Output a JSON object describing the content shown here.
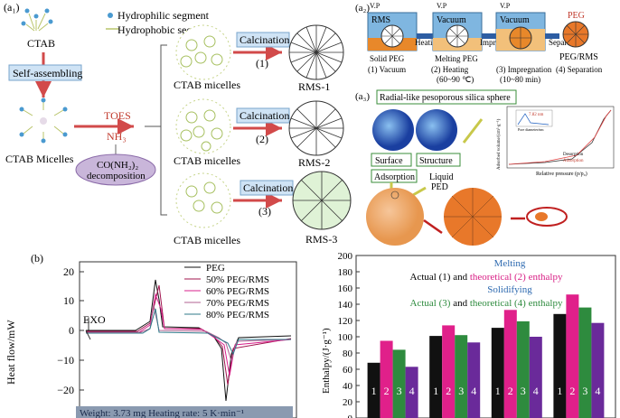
{
  "panel_a1": {
    "label": "(a₁)",
    "legend_hydrophilic": "Hydrophilic segment",
    "legend_hydrophobic": "Hydrophobic segment",
    "ctab": "CTAB",
    "self_assembling": "Self-assembling",
    "ctab_micelles_left": "CTAB Micelles",
    "toes": "TOES",
    "nh3": "NH₃",
    "urea_line1": "CO(NH₂)₂",
    "urea_line2": "decomposition",
    "calcination": "Calcination",
    "routes": [
      "(1)",
      "(2)",
      "(3)"
    ],
    "micelles_label": "CTAB micelles",
    "products": [
      "RMS-1",
      "RMS-2",
      "RMS-3"
    ]
  },
  "panel_a2": {
    "label": "(a₂)",
    "vp": "V.P",
    "box_labels": [
      "RMS",
      "Vacuum",
      "Vacuum"
    ],
    "solid_peg": "Solid PEG",
    "melting_peg": "Melting PEG",
    "peg": "PEG",
    "arrow_heating": "Heating",
    "arrow_impregnation": "Impregnation",
    "arrow_separation": "Separation",
    "peg_rms": "PEG/RMS",
    "steps": [
      "(1) Vacuum",
      "(2) Heating",
      "(3) Impregnation",
      "(4) Separation"
    ],
    "step_temps": [
      "(60~90 ℃)",
      "(10~80 min)"
    ]
  },
  "panel_a3": {
    "label": "(a₃)",
    "title": "Radial-like pesoporous silica sphere",
    "surface": "Surface",
    "structure": "Structure",
    "adsorption": "Adsorption",
    "liquid": "Liquid",
    "ped": "PED",
    "inset_xlabel": "Relative pressure (p/p₀)",
    "inset_ylabel": "Adsorbed volume/(cm³·g⁻¹)",
    "inset_legend": [
      "Desorption",
      "Adsorption"
    ],
    "inset_note": "7.82 nm",
    "inset_small": "Pore diameter/nm"
  },
  "panel_b": {
    "label": "(b)",
    "ylabel": "Heat flow/mW",
    "exo": "EXO",
    "legend": [
      {
        "name": "PEG",
        "color": "#111111"
      },
      {
        "name": "50% PEG/RMS",
        "color": "#a0144e"
      },
      {
        "name": "60% PEG/RMS",
        "color": "#d8208c"
      },
      {
        "name": "70% PEG/RMS",
        "color": "#b06090"
      },
      {
        "name": "80% PEG/RMS",
        "color": "#2f7a8a"
      }
    ],
    "yticks": [
      "20",
      "10",
      "0",
      "−10",
      "−20"
    ],
    "footer": "Weight: 3.73 mg Heating rate: 5 K·min⁻¹"
  },
  "chart_data": {
    "type": "bar",
    "ylabel": "Enthalpy/(J·g⁻¹)",
    "ylim": [
      0,
      200
    ],
    "yticks": [
      0,
      20,
      40,
      60,
      80,
      100,
      120,
      140,
      160,
      180,
      200
    ],
    "groups": 4,
    "bar_labels": [
      "1",
      "2",
      "3",
      "4"
    ],
    "series": [
      {
        "name": "Actual (1)",
        "color": "#111111",
        "values": [
          68,
          101,
          111,
          128
        ]
      },
      {
        "name": "theoretical (2)",
        "color": "#e0208a",
        "values": [
          95,
          114,
          133,
          152
        ]
      },
      {
        "name": "Actual (3)",
        "color": "#2e8b3e",
        "values": [
          84,
          102,
          119,
          136
        ]
      },
      {
        "name": "theoretical (4)",
        "color": "#6a2a9a",
        "values": [
          63,
          93,
          100,
          117
        ]
      }
    ],
    "legend": {
      "melting": "Melting",
      "line1_a": "Actual (1) and ",
      "line1_b": "theoretical (2) enthalpy",
      "solidifying": "Solidifying",
      "line2_a": "Actual (3)",
      "line2_b": " and ",
      "line2_c": "theoretical (4) enthalpy"
    }
  }
}
